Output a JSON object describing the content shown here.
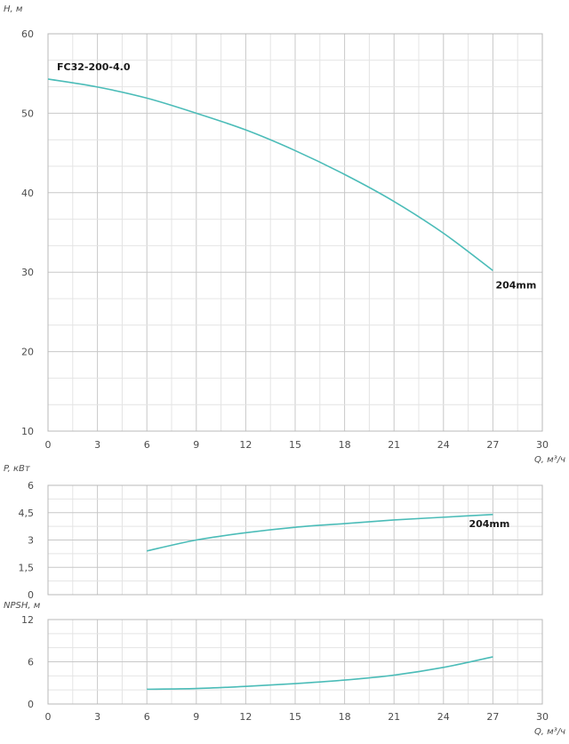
{
  "colors": {
    "curve": "#4bbcb8",
    "grid_major": "#c8c8c8",
    "grid_minor": "#e4e4e4"
  },
  "chart_data": [
    {
      "type": "line",
      "ylabel": "H, м",
      "xlabel": "Q, м³/ч",
      "xlim": [
        0,
        30
      ],
      "ylim": [
        10,
        60
      ],
      "x_ticks": [
        "0",
        "3",
        "6",
        "9",
        "12",
        "15",
        "18",
        "21",
        "24",
        "27",
        "30"
      ],
      "y_ticks": [
        "10",
        "20",
        "30",
        "40",
        "50",
        "60"
      ],
      "annotations": [
        "FC32-200-4.0"
      ],
      "series": [
        {
          "name": "204mm",
          "x": [
            0,
            3,
            6,
            9,
            12,
            15,
            18,
            21,
            24,
            27
          ],
          "y": [
            54.3,
            53.3,
            51.9,
            50.0,
            47.9,
            45.3,
            42.3,
            38.9,
            34.9,
            30.2
          ]
        }
      ]
    },
    {
      "type": "line",
      "ylabel": "P, кВт",
      "xlim": [
        0,
        30
      ],
      "ylim": [
        0,
        6
      ],
      "y_ticks": [
        "0",
        "1,5",
        "3",
        "4,5",
        "6"
      ],
      "series": [
        {
          "name": "204mm",
          "x": [
            6,
            9,
            12,
            15,
            18,
            21,
            24,
            27
          ],
          "y": [
            2.4,
            3.0,
            3.4,
            3.7,
            3.9,
            4.1,
            4.25,
            4.4
          ]
        }
      ]
    },
    {
      "type": "line",
      "ylabel": "NPSH, м",
      "xlabel": "Q, м³/ч",
      "xlim": [
        0,
        30
      ],
      "ylim": [
        0,
        12
      ],
      "x_ticks": [
        "0",
        "3",
        "6",
        "9",
        "12",
        "15",
        "18",
        "21",
        "24",
        "27",
        "30"
      ],
      "y_ticks": [
        "0",
        "6",
        "12"
      ],
      "series": [
        {
          "x": [
            6,
            9,
            12,
            15,
            18,
            21,
            24,
            27
          ],
          "y": [
            2.1,
            2.2,
            2.5,
            2.9,
            3.4,
            4.1,
            5.2,
            6.7
          ]
        }
      ]
    }
  ]
}
